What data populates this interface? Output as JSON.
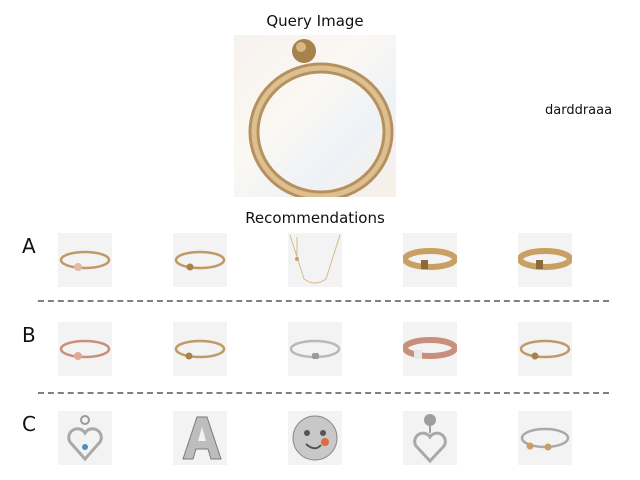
{
  "query_title": "Query Image",
  "side_label": "darddraaa",
  "recommendations_title": "Recommendations",
  "colors": {
    "gold": "#c9a063",
    "rose": "#c98f7c",
    "silver": "#b9b9b9"
  },
  "rows": [
    {
      "label": "A",
      "items": [
        {
          "icon": "gold-bracelet-rose-heart-charm-icon"
        },
        {
          "icon": "gold-bracelet-bead-clasp-icon"
        },
        {
          "icon": "gold-necklace-chain-icon"
        },
        {
          "icon": "gold-mesh-bracelet-icon"
        },
        {
          "icon": "gold-mesh-bracelet-icon"
        }
      ]
    },
    {
      "label": "B",
      "items": [
        {
          "icon": "rose-gold-bracelet-heart-charm-icon"
        },
        {
          "icon": "gold-bracelet-bead-clasp-icon"
        },
        {
          "icon": "silver-bracelet-clasp-icon"
        },
        {
          "icon": "rose-gold-mesh-bracelet-icon"
        },
        {
          "icon": "gold-bracelet-bead-clasp-icon"
        }
      ]
    },
    {
      "label": "C",
      "items": [
        {
          "icon": "silver-heart-pendant-charm-icon"
        },
        {
          "icon": "silver-letter-a-charm-icon"
        },
        {
          "icon": "silver-emoji-bead-charm-icon"
        },
        {
          "icon": "silver-heart-dangle-charm-icon"
        },
        {
          "icon": "silver-open-bangle-gold-beads-icon"
        }
      ]
    }
  ]
}
